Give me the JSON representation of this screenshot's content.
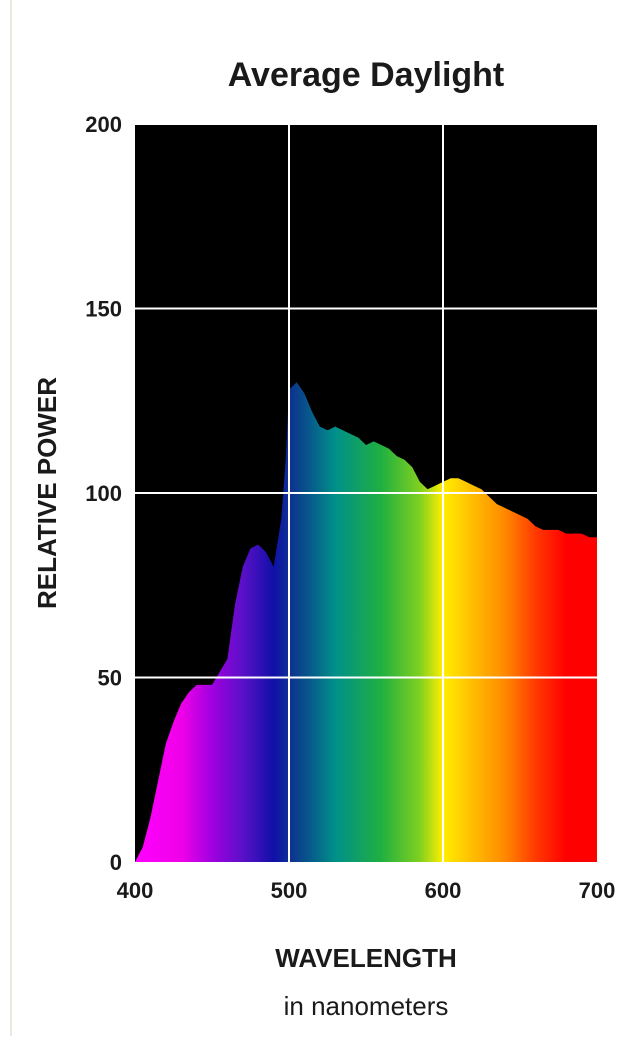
{
  "chart_data": {
    "type": "area",
    "title": "Average Daylight",
    "xlabel": "WAVELENGTH",
    "xlabel_sub": "in nanometers",
    "ylabel": "RELATIVE POWER",
    "xlim": [
      400,
      700
    ],
    "ylim": [
      0,
      200
    ],
    "x_ticks": [
      400,
      500,
      600,
      700
    ],
    "y_ticks": [
      0,
      50,
      100,
      150,
      200
    ],
    "grid": true,
    "background": "#000000",
    "series": [
      {
        "x": [
          400,
          405,
          410,
          415,
          420,
          425,
          430,
          435,
          440,
          450,
          460,
          465,
          470,
          475,
          480,
          485,
          490,
          495,
          498,
          500,
          505,
          510,
          515,
          520,
          525,
          530,
          535,
          540,
          545,
          550,
          555,
          560,
          565,
          570,
          575,
          580,
          585,
          590,
          595,
          600,
          605,
          610,
          615,
          620,
          625,
          630,
          635,
          640,
          645,
          650,
          655,
          660,
          665,
          670,
          675,
          680,
          685,
          690,
          695,
          700
        ],
        "values": [
          0,
          4,
          12,
          22,
          32,
          38,
          43,
          46,
          48,
          48,
          55,
          70,
          80,
          85,
          86,
          84,
          80,
          93,
          110,
          128,
          130,
          127,
          122,
          118,
          117,
          118,
          117,
          116,
          115,
          113,
          114,
          113,
          112,
          110,
          109,
          107,
          103,
          101,
          102,
          103,
          104,
          104,
          103,
          102,
          101,
          99,
          97,
          96,
          95,
          94,
          93,
          91,
          90,
          90,
          90,
          89,
          89,
          89,
          88,
          88
        ]
      }
    ],
    "spectrum_colors": [
      {
        "nm": 400,
        "color": "#ff00ff"
      },
      {
        "nm": 430,
        "color": "#f000e8"
      },
      {
        "nm": 450,
        "color": "#a000e0"
      },
      {
        "nm": 470,
        "color": "#5a10c8"
      },
      {
        "nm": 490,
        "color": "#1010a8"
      },
      {
        "nm": 505,
        "color": "#0b3e8c"
      },
      {
        "nm": 530,
        "color": "#00908a"
      },
      {
        "nm": 560,
        "color": "#20b040"
      },
      {
        "nm": 585,
        "color": "#80d020"
      },
      {
        "nm": 600,
        "color": "#ffee00"
      },
      {
        "nm": 620,
        "color": "#ffbb00"
      },
      {
        "nm": 640,
        "color": "#ff8a00"
      },
      {
        "nm": 660,
        "color": "#ff3a00"
      },
      {
        "nm": 680,
        "color": "#ff0000"
      },
      {
        "nm": 700,
        "color": "#ff0000"
      }
    ],
    "grid_color": "#ffffff"
  }
}
